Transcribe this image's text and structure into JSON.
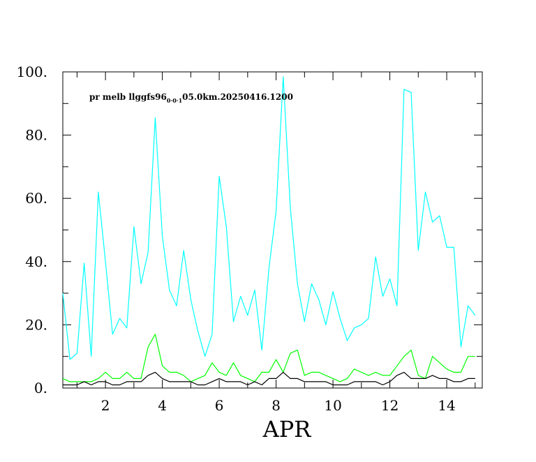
{
  "chart_data": {
    "type": "line",
    "annotation": {
      "prefix": "pr melb llggfs96",
      "subscript": "0·0·1",
      "suffix": "05.0km.20250416.1200"
    },
    "xlabel": "APR",
    "xlim": [
      0.5,
      15.25
    ],
    "ylim": [
      0,
      100
    ],
    "x_ticks": [
      2,
      4,
      6,
      8,
      10,
      12,
      14
    ],
    "x_tick_labels": [
      "2",
      "4",
      "6",
      "8",
      "10",
      "12",
      "14"
    ],
    "y_ticks": [
      0,
      20,
      40,
      60,
      80,
      100
    ],
    "y_tick_labels": [
      "0.",
      "20.",
      "40.",
      "60.",
      "80.",
      "100."
    ],
    "grid": false,
    "x": [
      0.5,
      0.75,
      1.0,
      1.25,
      1.5,
      1.75,
      2.0,
      2.25,
      2.5,
      2.75,
      3.0,
      3.25,
      3.5,
      3.75,
      4.0,
      4.25,
      4.5,
      4.75,
      5.0,
      5.25,
      5.5,
      5.75,
      6.0,
      6.25,
      6.5,
      6.75,
      7.0,
      7.25,
      7.5,
      7.75,
      8.0,
      8.25,
      8.5,
      8.75,
      9.0,
      9.25,
      9.5,
      9.75,
      10.0,
      10.25,
      10.5,
      10.75,
      11.0,
      11.25,
      11.5,
      11.75,
      12.0,
      12.25,
      12.5,
      12.75,
      13.0,
      13.25,
      13.5,
      13.75,
      14.0,
      14.25,
      14.5,
      14.75,
      15.0
    ],
    "series": [
      {
        "color": "#00ffff",
        "values": [
          30,
          9,
          11,
          39.5,
          10,
          62,
          40,
          17,
          22,
          19,
          51,
          33,
          43,
          85.5,
          48,
          31,
          26,
          43.5,
          28,
          18,
          10,
          17,
          67,
          51,
          21,
          29,
          23,
          31,
          12,
          38,
          56,
          98.5,
          57,
          33,
          21,
          33,
          28,
          20,
          30.5,
          22,
          15,
          19,
          20,
          22,
          41.5,
          29,
          34.5,
          26,
          94.5,
          93.5,
          43.5,
          62,
          52.5,
          54.5,
          44.5,
          44.5,
          13,
          26,
          23
        ]
      },
      {
        "color": "#00ff00",
        "values": [
          3,
          2,
          2,
          2,
          2,
          3,
          5,
          3,
          3,
          5,
          3,
          3,
          13,
          17,
          7,
          5,
          5,
          4,
          2,
          3,
          4,
          8,
          5,
          4,
          8,
          4,
          3,
          2,
          5,
          5,
          9,
          5,
          11,
          12,
          4,
          5,
          5,
          4,
          3,
          2,
          3,
          6,
          5,
          4,
          5,
          4,
          4,
          7,
          10,
          12,
          4,
          3,
          10,
          8,
          6,
          5,
          5,
          10,
          10
        ]
      },
      {
        "color": "#000000",
        "values": [
          1,
          1,
          1,
          2,
          1,
          2,
          2,
          1,
          1,
          2,
          2,
          2,
          4,
          5,
          3,
          2,
          2,
          2,
          2,
          1,
          1,
          2,
          3,
          2,
          2,
          2,
          1,
          2,
          1,
          3,
          3,
          5,
          3,
          3,
          2,
          2,
          2,
          2,
          1,
          1,
          1,
          2,
          2,
          2,
          2,
          1,
          2,
          4,
          5,
          3,
          3,
          3,
          4,
          3,
          3,
          2,
          2,
          3,
          3
        ]
      }
    ]
  }
}
